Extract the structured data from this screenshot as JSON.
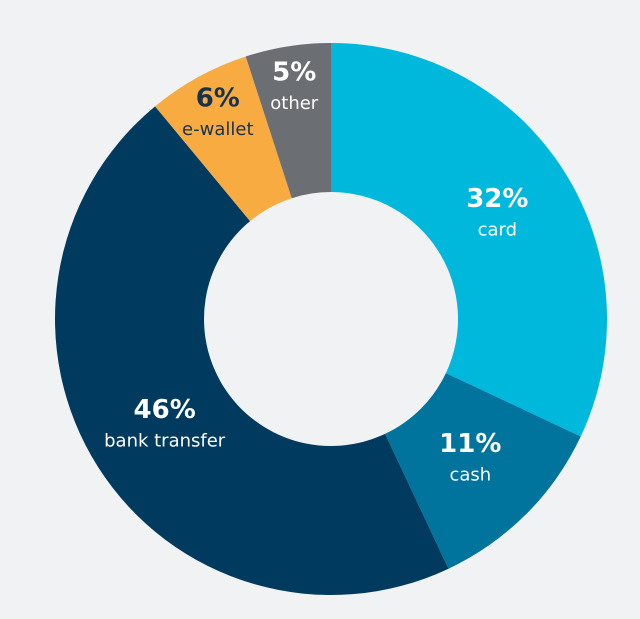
{
  "chart_data": {
    "type": "donut",
    "categories": [
      "card",
      "cash",
      "bank transfer",
      "e-wallet",
      "other"
    ],
    "values": [
      32,
      11,
      46,
      6,
      5
    ],
    "value_labels": [
      "32%",
      "11%",
      "46%",
      "6%",
      "5%"
    ],
    "colors": [
      "#00b8dc",
      "#00749c",
      "#003a5e",
      "#f7ab41",
      "#6b6e73"
    ],
    "label_colors": [
      "#ffffff",
      "#ffffff",
      "#ffffff",
      "#16324f",
      "#ffffff"
    ]
  }
}
